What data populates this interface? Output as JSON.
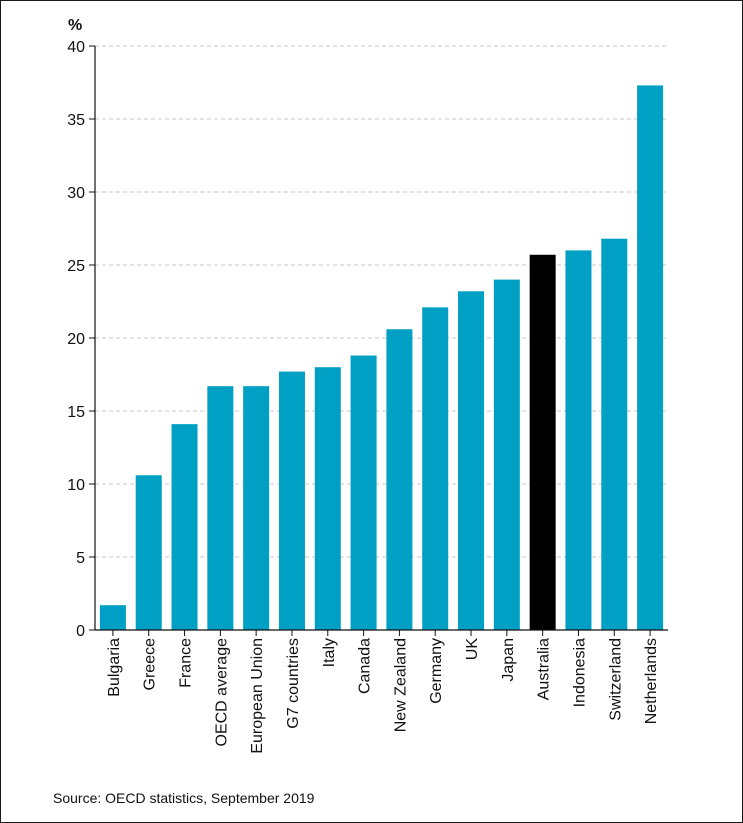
{
  "chart_data": {
    "type": "bar",
    "ylabel": "%",
    "ylim": [
      0,
      40
    ],
    "yticks": [
      0,
      5,
      10,
      15,
      20,
      25,
      30,
      35,
      40
    ],
    "grid": "horizontal dashed",
    "categories": [
      "Bulgaria",
      "Greece",
      "France",
      "OECD average",
      "European Union",
      "G7 countries",
      "Italy",
      "Canada",
      "New Zealand",
      "Germany",
      "UK",
      "Japan",
      "Australia",
      "Indonesia",
      "Switzerland",
      "Netherlands"
    ],
    "values": [
      1.7,
      10.6,
      14.1,
      16.7,
      16.7,
      17.7,
      18.0,
      18.8,
      20.6,
      22.1,
      23.2,
      24.0,
      25.7,
      26.0,
      26.8,
      37.3
    ],
    "colors": {
      "default": "#00a0c4",
      "highlight": "#000000"
    },
    "highlight": "Australia"
  },
  "source": "Source: OECD statistics, September 2019"
}
